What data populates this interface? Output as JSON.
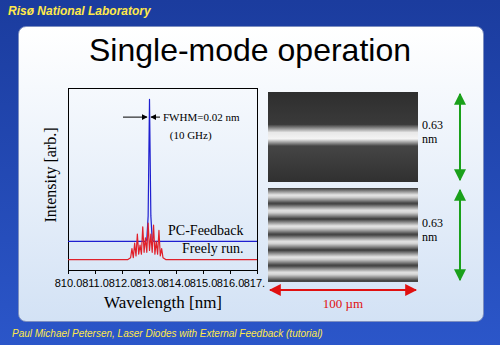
{
  "slide": {
    "header": "Risø National Laboratory",
    "footer": "Paul Michael Petersen, Laser Diodes with External Feedback (tutorial)",
    "images": [
      {
        "label": "0.63 nm"
      },
      {
        "label": "0.63 nm"
      }
    ],
    "scale_bar": "100 µm"
  },
  "chart_data": {
    "type": "line",
    "title": "Single-mode operation",
    "x_label": "Wavelength [nm]",
    "y_label": "Intensity [arb.]",
    "x": [
      810,
      811,
      812,
      812.2,
      812.3,
      812.35,
      812.4,
      812.45,
      812.5,
      812.55,
      812.6,
      812.65,
      812.7,
      812.75,
      812.8,
      812.85,
      812.9,
      812.95,
      813.0,
      813.05,
      813.1,
      813.15,
      813.2,
      813.25,
      813.3,
      813.35,
      813.4,
      813.45,
      813.5,
      813.6,
      813.8,
      814,
      815,
      816,
      817
    ],
    "series": [
      {
        "name": "PC-Feedback",
        "color": "#1f1fd0",
        "values": [
          0.16,
          0.16,
          0.16,
          0.16,
          0.16,
          0.16,
          0.16,
          0.16,
          0.16,
          0.16,
          0.16,
          0.16,
          0.16,
          0.16,
          0.16,
          0.16,
          0.17,
          0.3,
          0.94,
          0.3,
          0.17,
          0.16,
          0.16,
          0.16,
          0.16,
          0.16,
          0.16,
          0.16,
          0.16,
          0.16,
          0.16,
          0.16,
          0.16,
          0.16,
          0.16
        ]
      },
      {
        "name": "Freely run.",
        "color": "#e0202a",
        "values": [
          0.06,
          0.06,
          0.06,
          0.06,
          0.07,
          0.12,
          0.07,
          0.15,
          0.08,
          0.2,
          0.09,
          0.14,
          0.09,
          0.24,
          0.1,
          0.18,
          0.1,
          0.26,
          0.11,
          0.2,
          0.1,
          0.25,
          0.09,
          0.16,
          0.09,
          0.22,
          0.08,
          0.12,
          0.07,
          0.06,
          0.06,
          0.06,
          0.06,
          0.06,
          0.06
        ]
      }
    ],
    "annotations": [
      {
        "text": "FWHM=0.02 nm",
        "x": 813.5,
        "y": 0.84
      },
      {
        "text": "(10 GHz)",
        "x": 813.75,
        "y": 0.74
      }
    ],
    "xlim": [
      810,
      817
    ],
    "xticks": [
      810,
      811,
      812,
      813,
      814,
      815,
      816,
      817
    ],
    "ylim": [
      0,
      1
    ],
    "tick_labels": "x",
    "grid": false
  }
}
